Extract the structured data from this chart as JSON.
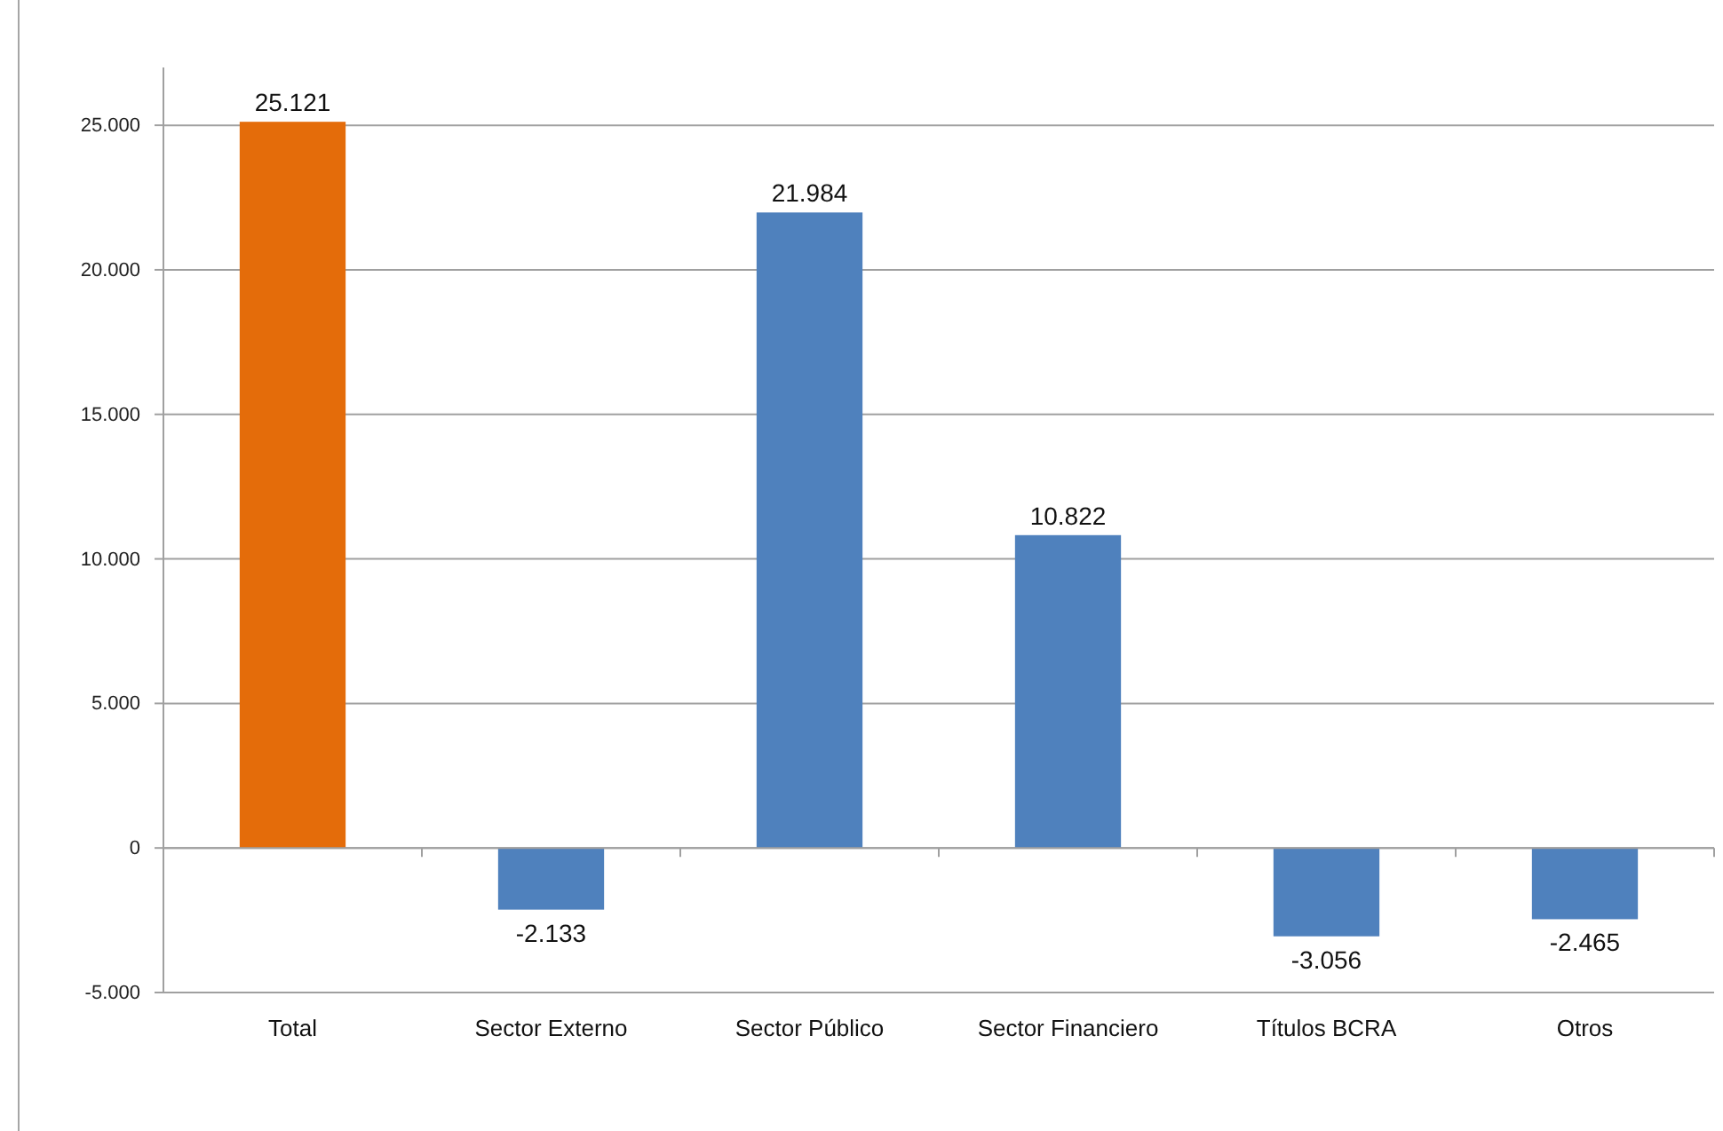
{
  "chart_data": {
    "type": "bar",
    "categories": [
      "Total",
      "Sector Externo",
      "Sector Público",
      "Sector Financiero",
      "Títulos BCRA",
      "Otros"
    ],
    "values": [
      25121,
      -2133,
      21984,
      10822,
      -3056,
      -2465
    ],
    "colors": [
      "#e46c0a",
      "#4f81bd",
      "#4f81bd",
      "#4f81bd",
      "#4f81bd",
      "#4f81bd"
    ],
    "value_labels": [
      "25.121",
      "-2.133",
      "21.984",
      "10.822",
      "-3.056",
      "-2.465"
    ],
    "ylim": [
      -5000,
      27000
    ],
    "yticks": [
      {
        "value": -5000,
        "label": "-5.000"
      },
      0,
      {
        "value": 5000,
        "label": "5.000"
      },
      {
        "value": 10000,
        "label": "10.000"
      },
      {
        "value": 15000,
        "label": "15.000"
      },
      {
        "value": 20000,
        "label": "20.000"
      },
      {
        "value": 25000,
        "label": "25.000"
      }
    ],
    "grid": "y"
  }
}
